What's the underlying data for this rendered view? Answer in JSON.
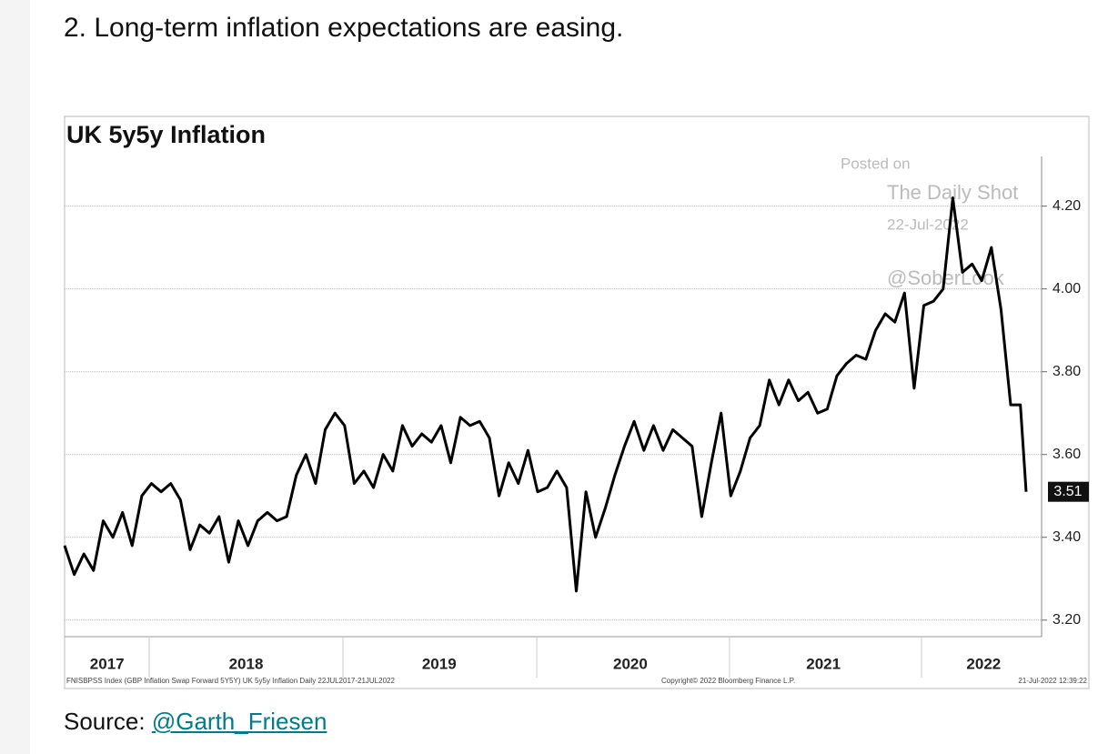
{
  "heading": "2. Long-term inflation expectations are easing.",
  "chart_data": {
    "type": "line",
    "title": "UK 5y5y Inflation",
    "color": "#000000",
    "x": [
      2017.56,
      2017.61,
      2017.66,
      2017.71,
      2017.76,
      2017.81,
      2017.86,
      2017.91,
      2017.96,
      2018.01,
      2018.06,
      2018.11,
      2018.16,
      2018.21,
      2018.26,
      2018.31,
      2018.36,
      2018.41,
      2018.46,
      2018.51,
      2018.56,
      2018.61,
      2018.66,
      2018.71,
      2018.76,
      2018.81,
      2018.86,
      2018.91,
      2018.96,
      2019.01,
      2019.06,
      2019.11,
      2019.16,
      2019.21,
      2019.26,
      2019.31,
      2019.36,
      2019.41,
      2019.46,
      2019.51,
      2019.56,
      2019.61,
      2019.66,
      2019.71,
      2019.76,
      2019.81,
      2019.86,
      2019.91,
      2019.96,
      2020.01,
      2020.06,
      2020.11,
      2020.16,
      2020.21,
      2020.26,
      2020.31,
      2020.36,
      2020.41,
      2020.46,
      2020.51,
      2020.56,
      2020.61,
      2020.66,
      2020.71,
      2020.76,
      2020.81,
      2020.86,
      2020.91,
      2020.96,
      2021.01,
      2021.06,
      2021.11,
      2021.16,
      2021.21,
      2021.26,
      2021.31,
      2021.36,
      2021.41,
      2021.46,
      2021.51,
      2021.56,
      2021.61,
      2021.66,
      2021.71,
      2021.76,
      2021.81,
      2021.86,
      2021.91,
      2021.96,
      2022.01,
      2022.06,
      2022.11,
      2022.16,
      2022.21,
      2022.26,
      2022.31,
      2022.36,
      2022.41,
      2022.46,
      2022.51,
      2022.54
    ],
    "values": [
      3.38,
      3.31,
      3.36,
      3.32,
      3.44,
      3.4,
      3.46,
      3.38,
      3.5,
      3.53,
      3.51,
      3.53,
      3.49,
      3.37,
      3.43,
      3.41,
      3.45,
      3.34,
      3.44,
      3.38,
      3.44,
      3.46,
      3.44,
      3.45,
      3.55,
      3.6,
      3.53,
      3.66,
      3.7,
      3.67,
      3.53,
      3.56,
      3.52,
      3.6,
      3.56,
      3.67,
      3.62,
      3.65,
      3.63,
      3.67,
      3.58,
      3.69,
      3.67,
      3.68,
      3.64,
      3.5,
      3.58,
      3.53,
      3.61,
      3.51,
      3.52,
      3.56,
      3.52,
      3.27,
      3.51,
      3.4,
      3.47,
      3.55,
      3.62,
      3.68,
      3.61,
      3.67,
      3.61,
      3.66,
      3.64,
      3.62,
      3.45,
      3.58,
      3.7,
      3.5,
      3.56,
      3.64,
      3.67,
      3.78,
      3.72,
      3.78,
      3.73,
      3.75,
      3.7,
      3.71,
      3.79,
      3.82,
      3.84,
      3.83,
      3.9,
      3.94,
      3.92,
      3.99,
      3.76,
      3.96,
      3.97,
      4.0,
      4.22,
      4.04,
      4.06,
      4.02,
      4.1,
      3.95,
      3.72,
      3.72,
      3.51
    ],
    "xlim": [
      2017.56,
      2022.62
    ],
    "xticks": [
      {
        "value": 2017.78,
        "label": "2017"
      },
      {
        "value": 2018.5,
        "label": "2018"
      },
      {
        "value": 2019.5,
        "label": "2019"
      },
      {
        "value": 2020.49,
        "label": "2020"
      },
      {
        "value": 2021.49,
        "label": "2021"
      },
      {
        "value": 2022.32,
        "label": "2022"
      }
    ],
    "ylim": [
      3.16,
      4.32
    ],
    "yticks": [
      {
        "value": 3.2,
        "label": "3.20"
      },
      {
        "value": 3.4,
        "label": "3.40"
      },
      {
        "value": 3.6,
        "label": "3.60"
      },
      {
        "value": 3.8,
        "label": "3.80"
      },
      {
        "value": 4.0,
        "label": "4.00"
      },
      {
        "value": 4.2,
        "label": "4.20"
      }
    ],
    "grid": true,
    "annotations": [
      {
        "label": "3.51",
        "value": 3.51
      }
    ],
    "watermark": [
      "Posted on",
      "The Daily Shot",
      "22-Jul-2022",
      "@SoberLook"
    ],
    "footer_left": "FNISBPSS Index (GBP Inflation Swap Forward 5Y5Y) UK 5y5y Inflation  Daily 22JUL2017-21JUL2022",
    "footer_center": "Copyright© 2022 Bloomberg Finance L.P.",
    "footer_right": "21-Jul-2022 12:39:22"
  },
  "source": {
    "prefix": "Source: ",
    "link": "@Garth_Friesen"
  }
}
